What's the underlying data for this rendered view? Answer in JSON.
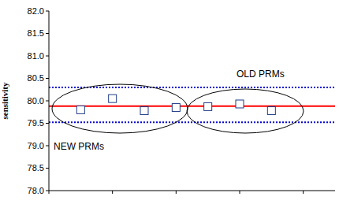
{
  "chart_data": {
    "type": "scatter",
    "y_label": "sensitivity",
    "x": [
      1,
      2,
      3,
      4,
      5,
      6,
      7
    ],
    "values": [
      79.8,
      80.05,
      79.78,
      79.85,
      79.87,
      79.93,
      79.78
    ],
    "color": "#1f3c88",
    "marker": "square",
    "xlim": [
      0,
      9
    ],
    "xticks": [
      0,
      2,
      4,
      6,
      8
    ],
    "ylim": [
      78,
      82
    ],
    "yticks": [
      {
        "value": 78,
        "label": "78.0"
      },
      78.5,
      {
        "value": 79,
        "label": "79.0"
      },
      79.5,
      {
        "value": 80,
        "label": "80.0"
      },
      80.5,
      {
        "value": 81,
        "label": "81.0"
      },
      81.5,
      {
        "value": 82,
        "label": "82.0"
      }
    ],
    "tick_labels": "y",
    "reference_lines": [
      {
        "value": 80.3,
        "color": "#0000cc",
        "line_style": "dotted"
      },
      {
        "value": 79.88,
        "color": "#ff0000",
        "line_style": "solid"
      },
      {
        "value": 79.52,
        "color": "#0000cc",
        "line_style": "dotted"
      }
    ],
    "annotations": [
      "NEW PRMs",
      "OLD PRMs"
    ]
  }
}
